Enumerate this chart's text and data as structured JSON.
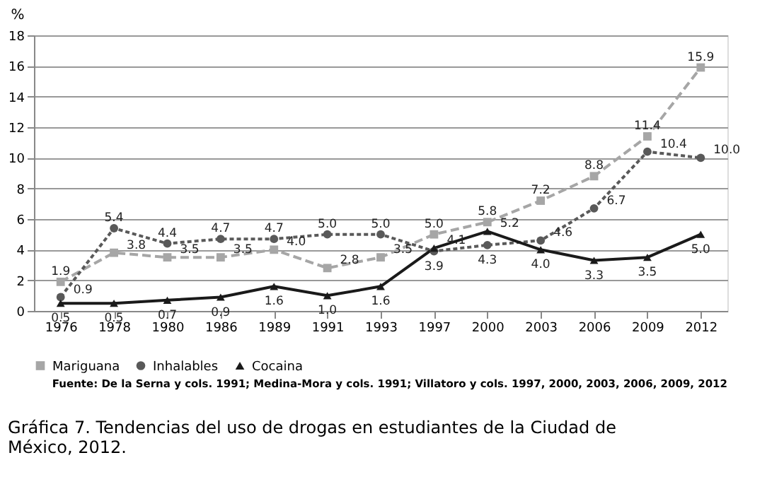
{
  "chart_data": {
    "type": "line",
    "title": "Gráfica 7. Tendencias del uso de drogas en estudiantes de la Ciudad de México, 2012.",
    "ylabel": "%",
    "categories": [
      "1976",
      "1978",
      "1980",
      "1986",
      "1989",
      "1991",
      "1993",
      "1997",
      "2000",
      "2003",
      "2006",
      "2009",
      "2012"
    ],
    "series": [
      {
        "name": "Mariguana",
        "color": "#a6a6a6",
        "marker": "square",
        "line_style": "dashed",
        "values": [
          1.9,
          3.8,
          3.5,
          3.5,
          4.0,
          2.8,
          3.5,
          5.0,
          5.8,
          7.2,
          8.8,
          11.4,
          15.9
        ]
      },
      {
        "name": "Inhalables",
        "color": "#595959",
        "marker": "circle",
        "line_style": "dotted",
        "values": [
          0.9,
          5.4,
          4.4,
          4.7,
          4.7,
          5.0,
          5.0,
          3.9,
          4.3,
          4.6,
          6.7,
          10.4,
          10.0
        ]
      },
      {
        "name": "Cocaina",
        "color": "#1a1a1a",
        "marker": "triangle",
        "line_style": "solid",
        "values": [
          0.5,
          0.5,
          0.7,
          0.9,
          1.6,
          1.0,
          1.6,
          4.1,
          5.2,
          4.0,
          3.3,
          3.5,
          5.0
        ]
      }
    ],
    "ylim": [
      0,
      18
    ],
    "yticks": [
      0,
      2,
      4,
      6,
      8,
      10,
      12,
      14,
      16,
      18
    ],
    "grid": "y",
    "legend": "bottom",
    "value_labels": [
      [
        "1.9",
        "3.8",
        "3.5",
        "3.5",
        "4.0",
        "2.8",
        "3.5",
        "5.0",
        "5.8",
        "7.2",
        "8.8",
        "11.4",
        "15.9"
      ],
      [
        "0.9",
        "5.4",
        "4.4",
        "4.7",
        "4.7",
        "5.0",
        "5.0",
        "3.9",
        "4.3",
        "4.6",
        "6.7",
        "10.4",
        "10.0"
      ],
      [
        "0.5",
        "0.5",
        "0.7",
        "0.9",
        "1.6",
        "1.0",
        "1.6",
        "4.1",
        "5.2",
        "4.0",
        "3.3",
        "3.5",
        "5.0"
      ]
    ],
    "annotations": [
      "Fuente: De la Serna y cols. 1991; Medina-Mora y cols. 1991; Villatoro y cols. 1997, 2000, 2003, 2006, 2009, 2012"
    ]
  }
}
